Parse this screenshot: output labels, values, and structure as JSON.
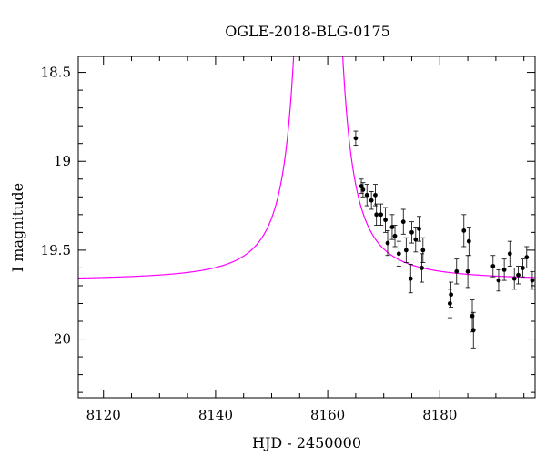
{
  "chart_data": {
    "type": "scatter",
    "title": "OGLE-2018-BLG-0175",
    "xlabel": "HJD - 2450000",
    "ylabel": "I magnitude",
    "xlim": [
      8115.5,
      8197
    ],
    "ylim": [
      20.33,
      18.41
    ],
    "y_inverted": true,
    "xticks": [
      8120,
      8140,
      8160,
      8180
    ],
    "xtick_labels": [
      "8120",
      "8140",
      "8160",
      "8180"
    ],
    "yticks": [
      18.5,
      19,
      19.5,
      20
    ],
    "ytick_labels": [
      "18.5",
      "19",
      "19.5",
      "20"
    ],
    "grid": false,
    "legend": "none",
    "colors": {
      "model": "#ff00ff",
      "points": "#000000",
      "axes": "#000000"
    },
    "model": {
      "name": "",
      "t0": 8158.3,
      "baseline_mag": 19.67,
      "amp": 0.43,
      "width": 7.5,
      "x_range": [
        8115.5,
        8197
      ]
    },
    "series": [
      {
        "name": "",
        "points": [
          {
            "x": 8165.0,
            "y": 18.87,
            "err": 0.04
          },
          {
            "x": 8166.0,
            "y": 19.14,
            "err": 0.04
          },
          {
            "x": 8166.3,
            "y": 19.16,
            "err": 0.04
          },
          {
            "x": 8167.0,
            "y": 19.19,
            "err": 0.06
          },
          {
            "x": 8167.8,
            "y": 19.22,
            "err": 0.05
          },
          {
            "x": 8168.5,
            "y": 19.19,
            "err": 0.06
          },
          {
            "x": 8168.7,
            "y": 19.3,
            "err": 0.06
          },
          {
            "x": 8169.5,
            "y": 19.3,
            "err": 0.06
          },
          {
            "x": 8170.3,
            "y": 19.33,
            "err": 0.07
          },
          {
            "x": 8170.7,
            "y": 19.46,
            "err": 0.07
          },
          {
            "x": 8171.5,
            "y": 19.37,
            "err": 0.07
          },
          {
            "x": 8172.0,
            "y": 19.42,
            "err": 0.06
          },
          {
            "x": 8172.7,
            "y": 19.52,
            "err": 0.07
          },
          {
            "x": 8173.5,
            "y": 19.34,
            "err": 0.07
          },
          {
            "x": 8174.0,
            "y": 19.5,
            "err": 0.07
          },
          {
            "x": 8174.8,
            "y": 19.66,
            "err": 0.08
          },
          {
            "x": 8175.0,
            "y": 19.4,
            "err": 0.06
          },
          {
            "x": 8175.7,
            "y": 19.44,
            "err": 0.07
          },
          {
            "x": 8176.3,
            "y": 19.38,
            "err": 0.07
          },
          {
            "x": 8176.8,
            "y": 19.6,
            "err": 0.08
          },
          {
            "x": 8177.0,
            "y": 19.5,
            "err": 0.07
          },
          {
            "x": 8181.8,
            "y": 19.8,
            "err": 0.08
          },
          {
            "x": 8182.0,
            "y": 19.75,
            "err": 0.07
          },
          {
            "x": 8183.0,
            "y": 19.62,
            "err": 0.07
          },
          {
            "x": 8184.3,
            "y": 19.39,
            "err": 0.09
          },
          {
            "x": 8185.0,
            "y": 19.62,
            "err": 0.09
          },
          {
            "x": 8185.2,
            "y": 19.45,
            "err": 0.08
          },
          {
            "x": 8185.8,
            "y": 19.87,
            "err": 0.09
          },
          {
            "x": 8186.0,
            "y": 19.95,
            "err": 0.1
          },
          {
            "x": 8189.5,
            "y": 19.59,
            "err": 0.06
          },
          {
            "x": 8190.5,
            "y": 19.67,
            "err": 0.06
          },
          {
            "x": 8191.5,
            "y": 19.61,
            "err": 0.06
          },
          {
            "x": 8192.5,
            "y": 19.52,
            "err": 0.07
          },
          {
            "x": 8193.3,
            "y": 19.66,
            "err": 0.06
          },
          {
            "x": 8194.0,
            "y": 19.64,
            "err": 0.05
          },
          {
            "x": 8194.8,
            "y": 19.6,
            "err": 0.05
          },
          {
            "x": 8195.5,
            "y": 19.54,
            "err": 0.06
          },
          {
            "x": 8196.5,
            "y": 19.67,
            "err": 0.05
          }
        ]
      }
    ]
  }
}
